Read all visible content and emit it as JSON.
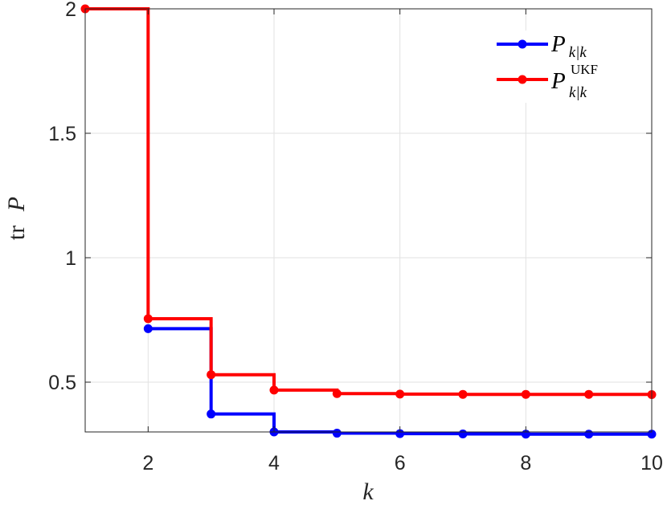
{
  "chart_data": {
    "type": "line",
    "step": true,
    "xlabel": "k",
    "ylabel_prefix": "tr",
    "ylabel_var": "P",
    "xlim": [
      1,
      10
    ],
    "ylim": [
      0.3,
      2
    ],
    "xticks": [
      2,
      4,
      6,
      8,
      10
    ],
    "yticks": [
      0.5,
      1,
      1.5,
      2
    ],
    "ytick_labels": [
      "0.5",
      "1",
      "1.5",
      "2"
    ],
    "grid": true,
    "legend_placement": "top-right",
    "series": [
      {
        "name_base": "P",
        "name_sub": "k|k",
        "name_sup": "",
        "color": "#0000ff",
        "x": [
          2,
          3,
          4,
          5,
          6,
          7,
          8,
          9,
          10
        ],
        "values": [
          0.715,
          0.372,
          0.3,
          0.295,
          0.293,
          0.292,
          0.291,
          0.291,
          0.291
        ]
      },
      {
        "name_base": "P",
        "name_sub": "k|k",
        "name_sup": "UKF",
        "color": "#ff0000",
        "x": [
          1,
          2,
          3,
          4,
          5,
          6,
          7,
          8,
          9,
          10
        ],
        "values": [
          2.0,
          0.755,
          0.53,
          0.468,
          0.454,
          0.452,
          0.451,
          0.451,
          0.451,
          0.45
        ]
      }
    ]
  }
}
